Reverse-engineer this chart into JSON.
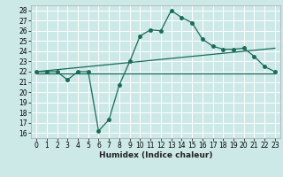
{
  "xlabel": "Humidex (Indice chaleur)",
  "background_color": "#cce9e7",
  "grid_color": "#ffffff",
  "line_color": "#1a6b5a",
  "xlim": [
    -0.5,
    23.5
  ],
  "ylim": [
    15.5,
    28.5
  ],
  "yticks": [
    16,
    17,
    18,
    19,
    20,
    21,
    22,
    23,
    24,
    25,
    26,
    27,
    28
  ],
  "xticks": [
    0,
    1,
    2,
    3,
    4,
    5,
    6,
    7,
    8,
    9,
    10,
    11,
    12,
    13,
    14,
    15,
    16,
    17,
    18,
    19,
    20,
    21,
    22,
    23
  ],
  "curve1_x": [
    0,
    1,
    2,
    3,
    4,
    5,
    6,
    7,
    8,
    9,
    10,
    11,
    12,
    13,
    14,
    15,
    16,
    17,
    18,
    19,
    20,
    21,
    22,
    23
  ],
  "curve1_y": [
    22,
    22,
    22,
    21.2,
    22,
    22,
    16.2,
    17.3,
    20.7,
    23.0,
    25.5,
    26.1,
    26.0,
    28.0,
    27.3,
    26.8,
    25.2,
    24.5,
    24.2,
    24.2,
    24.3,
    23.5,
    22.5,
    22
  ],
  "curve2_x": [
    0,
    23
  ],
  "curve2_y": [
    22.0,
    24.3
  ],
  "curve3_x": [
    0,
    23
  ],
  "curve3_y": [
    21.8,
    21.8
  ],
  "marker_size": 2.5,
  "linewidth": 0.9,
  "tick_fontsize": 5.5,
  "xlabel_fontsize": 6.5
}
